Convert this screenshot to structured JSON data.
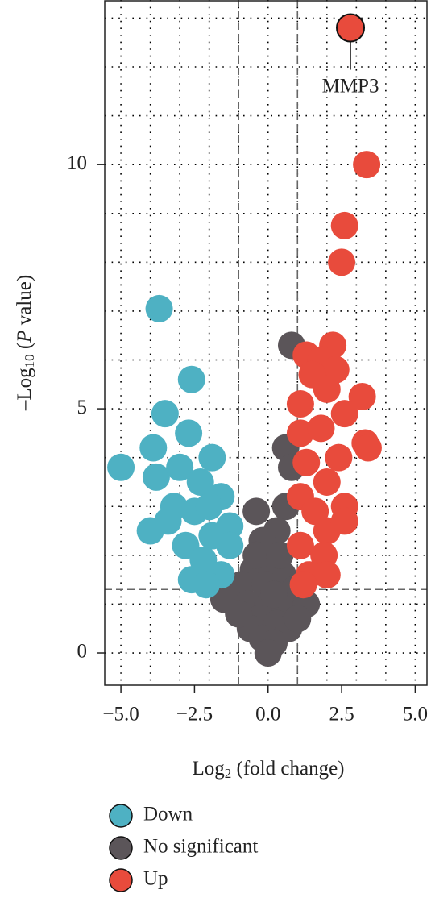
{
  "chart_data": {
    "type": "scatter",
    "xlabel": [
      "Log",
      "2",
      " (fold change)"
    ],
    "ylabel": [
      "–Log",
      "10",
      " (",
      "P",
      " value)"
    ],
    "xlim": [
      -5.55,
      5.4
    ],
    "ylim": [
      -0.66,
      13.37
    ],
    "xticks": [
      {
        "value": -5,
        "label": "−5.0"
      },
      {
        "value": -2.5,
        "label": "−2.5"
      },
      {
        "value": 0,
        "label": "0.0"
      },
      2.5,
      {
        "value": 5,
        "label": "5.0"
      }
    ],
    "yticks": [
      0,
      5,
      10
    ],
    "grid_x": [
      -5,
      -4,
      -3,
      -2,
      -1,
      0,
      1,
      2,
      3,
      4,
      5
    ],
    "grid_y": [
      0,
      1,
      2,
      3,
      4,
      5,
      6,
      7,
      8,
      9,
      10,
      11,
      12,
      13
    ],
    "grid": true,
    "thresholds": {
      "x": [
        -1,
        1
      ],
      "y": 1.3
    },
    "legend": "bottom",
    "series": [
      {
        "name": "Down",
        "color": "#4eb1c3",
        "x": [
          -3.7,
          -2.6,
          -3.5,
          -5,
          -3.9,
          -2.7,
          -3.8,
          -3.0,
          -1.9,
          -2.3,
          -3.2,
          -1.6,
          -2.5,
          -4.0,
          -1.3,
          -2.8,
          -1.9,
          -2.2,
          -1.3,
          -2.6,
          -1.6,
          -2.1,
          -3.4,
          -2.0
        ],
        "values": [
          7.05,
          5.6,
          4.9,
          3.8,
          4.2,
          4.5,
          3.6,
          3.8,
          4.0,
          3.5,
          3.0,
          3.2,
          2.9,
          2.5,
          2.6,
          2.2,
          2.4,
          1.9,
          2.2,
          1.5,
          1.6,
          1.4,
          2.7,
          3.0
        ]
      },
      {
        "name": "No significant",
        "color": "#5b5559",
        "x": [
          0.8,
          0.6,
          0.8,
          0.6,
          0.3,
          -0.4,
          -0.2,
          0.1,
          -0.5,
          0.5,
          -0.9,
          0.9,
          -1.5,
          -0.7,
          0,
          0.6,
          1.3,
          -0.3,
          0.3,
          -0.6,
          0.7,
          -0.2,
          0.2,
          0,
          -1.0,
          1.0,
          -0.4,
          0.4,
          -0.1,
          0.2
        ],
        "values": [
          6.3,
          4.2,
          3.8,
          3.0,
          2.5,
          2.9,
          2.3,
          1.8,
          1.7,
          1.6,
          1.4,
          1.3,
          1.1,
          1.0,
          1.0,
          0.9,
          1.0,
          0.7,
          0.6,
          0.5,
          0.5,
          0.3,
          0.2,
          0,
          0.8,
          0.7,
          2.0,
          2.0,
          1.4,
          1.2
        ]
      },
      {
        "name": "Up",
        "color": "#e84b3c",
        "x": [
          2.8,
          3.35,
          2.6,
          2.5,
          2.2,
          1.3,
          1.8,
          2.3,
          1.5,
          3.2,
          1.1,
          2.0,
          2.6,
          3.3,
          3.4,
          1.1,
          1.8,
          2.4,
          1.3,
          2.0,
          1.1,
          2.6,
          1.6,
          2.0,
          1.1,
          1.9,
          1.4,
          2.0,
          1.2,
          2.6
        ],
        "values": [
          12.8,
          10.0,
          8.75,
          8.0,
          6.3,
          6.1,
          6.0,
          5.8,
          5.7,
          5.25,
          5.1,
          5.4,
          4.9,
          4.3,
          4.2,
          4.5,
          4.6,
          4.0,
          3.9,
          3.5,
          3.2,
          3.0,
          2.9,
          2.5,
          2.2,
          2.0,
          1.6,
          1.6,
          1.4,
          2.7
        ]
      }
    ],
    "annotation": {
      "text": "MMP3",
      "x": 2.8,
      "y": 12.8
    }
  }
}
